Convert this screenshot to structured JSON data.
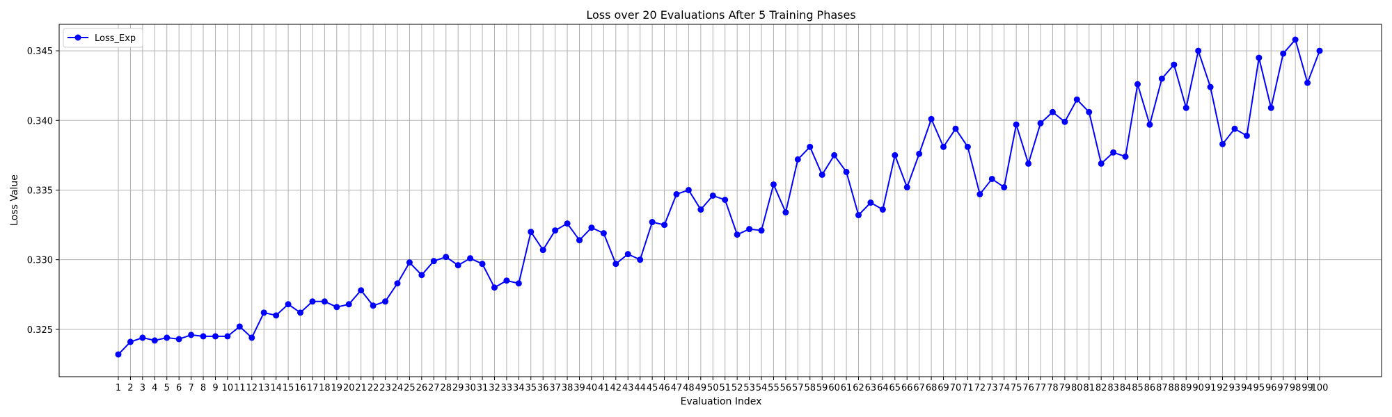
{
  "chart_data": {
    "type": "line",
    "title": "Loss over 20 Evaluations After 5 Training Phases",
    "xlabel": "Evaluation Index",
    "ylabel": "Loss Value",
    "x": [
      1,
      2,
      3,
      4,
      5,
      6,
      7,
      8,
      9,
      10,
      11,
      12,
      13,
      14,
      15,
      16,
      17,
      18,
      19,
      20,
      21,
      22,
      23,
      24,
      25,
      26,
      27,
      28,
      29,
      30,
      31,
      32,
      33,
      34,
      35,
      36,
      37,
      38,
      39,
      40,
      41,
      42,
      43,
      44,
      45,
      46,
      47,
      48,
      49,
      50,
      51,
      52,
      53,
      54,
      55,
      56,
      57,
      58,
      59,
      60,
      61,
      62,
      63,
      64,
      65,
      66,
      67,
      68,
      69,
      70,
      71,
      72,
      73,
      74,
      75,
      76,
      77,
      78,
      79,
      80,
      81,
      82,
      83,
      84,
      85,
      86,
      87,
      88,
      89,
      90,
      91,
      92,
      93,
      94,
      95,
      96,
      97,
      98,
      99,
      100
    ],
    "series": [
      {
        "name": "Loss_Exp",
        "color": "#0000ff",
        "marker": "circle",
        "values": [
          0.3232,
          0.3241,
          0.3244,
          0.3242,
          0.3244,
          0.3243,
          0.3246,
          0.3245,
          0.3245,
          0.3245,
          0.3252,
          0.3244,
          0.3262,
          0.326,
          0.3268,
          0.3262,
          0.327,
          0.327,
          0.3266,
          0.3268,
          0.3278,
          0.3267,
          0.327,
          0.3283,
          0.3298,
          0.3289,
          0.3299,
          0.3302,
          0.3296,
          0.3301,
          0.3297,
          0.328,
          0.3285,
          0.3283,
          0.332,
          0.3307,
          0.3321,
          0.3326,
          0.3314,
          0.3323,
          0.3319,
          0.3297,
          0.3304,
          0.33,
          0.3327,
          0.3325,
          0.3347,
          0.335,
          0.3336,
          0.3346,
          0.3343,
          0.3318,
          0.3322,
          0.3321,
          0.3354,
          0.3334,
          0.3372,
          0.3381,
          0.3361,
          0.3375,
          0.3363,
          0.3332,
          0.3341,
          0.3336,
          0.3375,
          0.3352,
          0.3376,
          0.3401,
          0.3381,
          0.3394,
          0.3381,
          0.3347,
          0.3358,
          0.3352,
          0.3397,
          0.3369,
          0.3398,
          0.3406,
          0.3399,
          0.3415,
          0.3406,
          0.3369,
          0.3377,
          0.3374,
          0.3426,
          0.3397,
          0.343,
          0.344,
          0.3409,
          0.345,
          0.3424,
          0.3383,
          0.3394,
          0.3389,
          0.3445,
          0.3409,
          0.3448,
          0.3458,
          0.3427,
          0.345
        ]
      }
    ],
    "ylim": [
      0.3216,
      0.3469
    ],
    "yticks": [
      0.325,
      0.33,
      0.335,
      0.34,
      0.345
    ],
    "ytick_labels": [
      "0.325",
      "0.330",
      "0.335",
      "0.340",
      "0.345"
    ],
    "xticks": [
      1,
      2,
      3,
      4,
      5,
      6,
      7,
      8,
      9,
      10,
      11,
      12,
      13,
      14,
      15,
      16,
      17,
      18,
      19,
      20,
      21,
      22,
      23,
      24,
      25,
      26,
      27,
      28,
      29,
      30,
      31,
      32,
      33,
      34,
      35,
      36,
      37,
      38,
      39,
      40,
      41,
      42,
      43,
      44,
      45,
      46,
      47,
      48,
      49,
      50,
      51,
      52,
      53,
      54,
      55,
      56,
      57,
      58,
      59,
      60,
      61,
      62,
      63,
      64,
      65,
      66,
      67,
      68,
      69,
      70,
      71,
      72,
      73,
      74,
      75,
      76,
      77,
      78,
      79,
      80,
      81,
      82,
      83,
      84,
      85,
      86,
      87,
      88,
      89,
      90,
      91,
      92,
      93,
      94,
      95,
      96,
      97,
      98,
      99,
      100
    ],
    "xtick_labels": [
      "1",
      "2",
      "3",
      "4",
      "5",
      "6",
      "7",
      "8",
      "9",
      "10",
      "11",
      "12",
      "13",
      "14",
      "15",
      "16",
      "17",
      "18",
      "19",
      "20",
      "21",
      "22",
      "23",
      "24",
      "25",
      "26",
      "27",
      "28",
      "29",
      "30",
      "31",
      "32",
      "33",
      "34",
      "35",
      "36",
      "37",
      "38",
      "39",
      "40",
      "41",
      "42",
      "43",
      "44",
      "45",
      "46",
      "47",
      "48",
      "49",
      "50",
      "51",
      "52",
      "53",
      "54",
      "55",
      "56",
      "57",
      "58",
      "59",
      "60",
      "61",
      "62",
      "63",
      "64",
      "65",
      "66",
      "67",
      "68",
      "69",
      "70",
      "71",
      "72",
      "73",
      "74",
      "75",
      "76",
      "77",
      "78",
      "79",
      "80",
      "81",
      "82",
      "83",
      "84",
      "85",
      "86",
      "87",
      "88",
      "89",
      "90",
      "91",
      "92",
      "93",
      "94",
      "95",
      "96",
      "97",
      "98",
      "99",
      "100"
    ],
    "grid": true,
    "legend": "top-left"
  }
}
